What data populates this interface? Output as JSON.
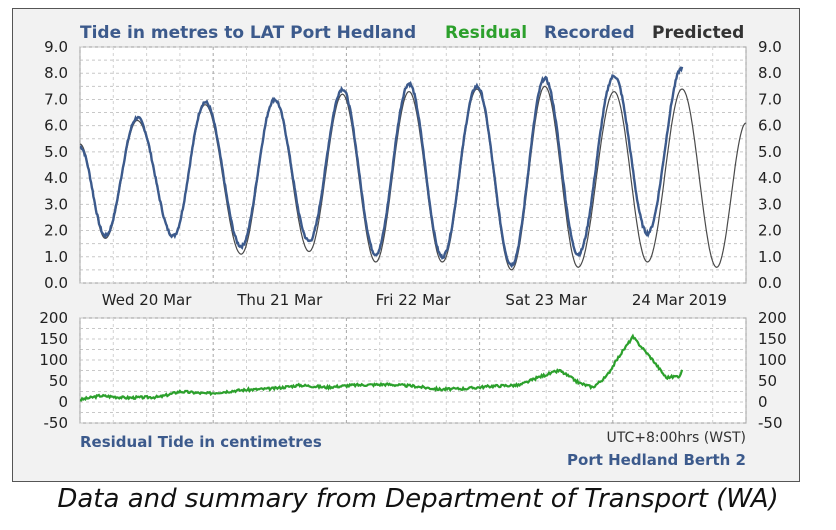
{
  "chart_data": [
    {
      "type": "line",
      "title": "Tide in metres to LAT Port Hedland",
      "legend": [
        "Residual",
        "Recorded",
        "Predicted"
      ],
      "legend_placement": "top-right",
      "ylim": [
        0,
        9
      ],
      "yticks": [
        "0.0",
        "1.0",
        "2.0",
        "3.0",
        "4.0",
        "5.0",
        "6.0",
        "7.0",
        "8.0",
        "9.0"
      ],
      "xlabels": [
        "Wed 20 Mar",
        "Thu 21 Mar",
        "Fri 22 Mar",
        "Sat 23 Mar",
        "24 Mar 2019"
      ],
      "x_unit": "day from start of Wed 20 Mar",
      "xlim": [
        0.0,
        5.0
      ],
      "grid": true,
      "series": [
        {
          "name": "Predicted",
          "color": "#4a4a4a",
          "turning_points": [
            [
              0.0,
              5.3
            ],
            [
              0.19,
              1.7
            ],
            [
              0.43,
              6.2
            ],
            [
              0.7,
              1.8
            ],
            [
              0.94,
              6.8
            ],
            [
              1.21,
              1.1
            ],
            [
              1.46,
              7.0
            ],
            [
              1.72,
              1.2
            ],
            [
              1.97,
              7.2
            ],
            [
              2.22,
              0.8
            ],
            [
              2.47,
              7.3
            ],
            [
              2.72,
              0.8
            ],
            [
              2.98,
              7.4
            ],
            [
              3.24,
              0.5
            ],
            [
              3.49,
              7.5
            ],
            [
              3.74,
              0.6
            ],
            [
              4.01,
              7.3
            ],
            [
              4.26,
              0.8
            ],
            [
              4.52,
              7.4
            ],
            [
              4.78,
              0.6
            ],
            [
              5.0,
              6.1
            ]
          ]
        },
        {
          "name": "Recorded",
          "color": "#3c5a8c",
          "turning_points": [
            [
              0.0,
              5.2
            ],
            [
              0.19,
              1.8
            ],
            [
              0.43,
              6.3
            ],
            [
              0.7,
              1.8
            ],
            [
              0.94,
              6.9
            ],
            [
              1.21,
              1.4
            ],
            [
              1.46,
              7.0
            ],
            [
              1.72,
              1.6
            ],
            [
              1.97,
              7.4
            ],
            [
              2.22,
              1.1
            ],
            [
              2.47,
              7.6
            ],
            [
              2.72,
              1.0
            ],
            [
              2.98,
              7.5
            ],
            [
              3.24,
              0.7
            ],
            [
              3.49,
              7.8
            ],
            [
              3.74,
              1.1
            ],
            [
              4.01,
              7.9
            ],
            [
              4.26,
              1.9
            ],
            [
              4.52,
              8.2
            ]
          ]
        }
      ]
    },
    {
      "type": "line",
      "title": "Residual Tide in centimetres",
      "ylim": [
        -50,
        200
      ],
      "yticks": [
        "-50",
        "0",
        "50",
        "100",
        "150",
        "200"
      ],
      "xlim": [
        0.0,
        5.0
      ],
      "grid": true,
      "series": [
        {
          "name": "Residual",
          "color": "#2ca02c",
          "x": [
            0.0,
            0.15,
            0.35,
            0.6,
            0.75,
            0.95,
            1.2,
            1.45,
            1.65,
            1.85,
            2.05,
            2.3,
            2.5,
            2.7,
            2.9,
            3.1,
            3.3,
            3.45,
            3.6,
            3.75,
            3.85,
            3.95,
            4.05,
            4.15,
            4.3,
            4.4,
            4.5,
            4.52
          ],
          "values": [
            5,
            15,
            10,
            12,
            25,
            20,
            28,
            32,
            40,
            35,
            40,
            42,
            38,
            30,
            32,
            38,
            40,
            60,
            75,
            45,
            35,
            60,
            110,
            155,
            100,
            58,
            62,
            75
          ]
        }
      ]
    }
  ],
  "footer": {
    "residual_title": "Residual Tide in centimetres",
    "timezone": "UTC+8:00hrs (WST)",
    "station": "Port Hedland Berth 2"
  },
  "caption": "Data and summary from Department of Transport (WA)"
}
